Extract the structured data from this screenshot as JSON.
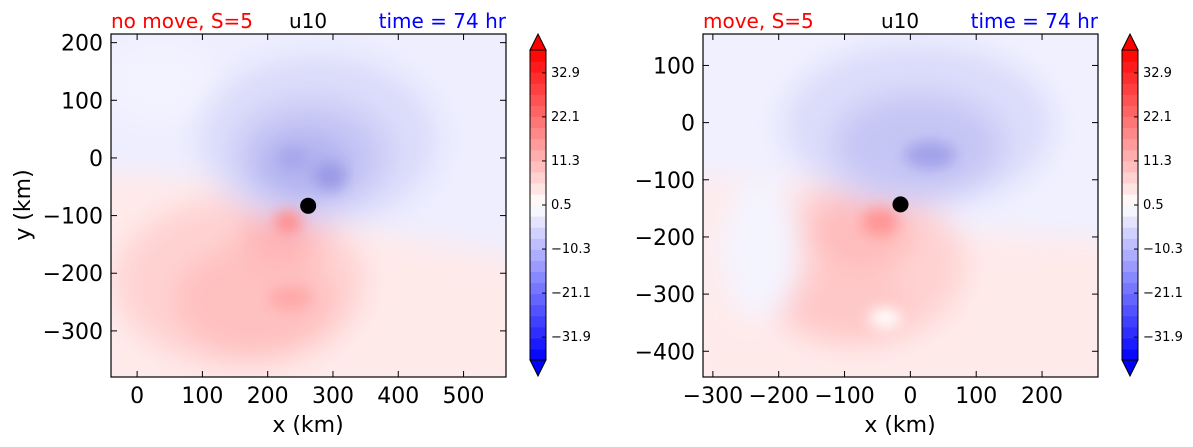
{
  "chart_data": [
    {
      "type": "heatmap",
      "title_left": "no move, S=5",
      "title_center": "u10",
      "title_right": "time = 74 hr",
      "title_left_color": "#ff0000",
      "title_center_color": "#000000",
      "title_right_color": "#0000ff",
      "xlabel": "x (km)",
      "ylabel": "y (km)",
      "xlim": [
        -40,
        565
      ],
      "ylim": [
        -380,
        215
      ],
      "xticks": [
        0,
        100,
        200,
        300,
        400,
        500
      ],
      "xtick_labels": [
        "0",
        "100",
        "200",
        "300",
        "400",
        "500"
      ],
      "yticks": [
        200,
        100,
        0,
        -100,
        -200,
        -300
      ],
      "ytick_labels": [
        "200",
        "100",
        "0",
        "−100",
        "−200",
        "−300"
      ],
      "storm_center": [
        262,
        -83
      ],
      "colorbar": {
        "min": -37.5,
        "max": 38.5,
        "ticks": [
          32.9,
          22.1,
          11.3,
          0.5,
          -10.3,
          -21.1,
          -31.9
        ],
        "tick_labels": [
          "32.9",
          "22.1",
          "11.3",
          "0.5",
          "−10.3",
          "−21.1",
          "−31.9"
        ],
        "extend": "both",
        "colormap": "bwr",
        "color_low": "#0000ff",
        "color_mid": "#ffffff",
        "color_high": "#ff0000"
      }
    },
    {
      "type": "heatmap",
      "title_left": "move, S=5",
      "title_center": "u10",
      "title_right": "time = 74 hr",
      "title_left_color": "#ff0000",
      "title_center_color": "#000000",
      "title_right_color": "#0000ff",
      "xlabel": "x (km)",
      "ylabel": "",
      "xlim": [
        -315,
        285
      ],
      "ylim": [
        -445,
        155
      ],
      "xticks": [
        -300,
        -200,
        -100,
        0,
        100,
        200
      ],
      "xtick_labels": [
        "−300",
        "−200",
        "−100",
        "0",
        "100",
        "200"
      ],
      "yticks": [
        100,
        0,
        -100,
        -200,
        -300,
        -400
      ],
      "ytick_labels": [
        "100",
        "0",
        "−100",
        "−200",
        "−300",
        "−400"
      ],
      "storm_center": [
        -15,
        -143
      ],
      "colorbar": {
        "min": -37.5,
        "max": 38.5,
        "ticks": [
          32.9,
          22.1,
          11.3,
          0.5,
          -10.3,
          -21.1,
          -31.9
        ],
        "tick_labels": [
          "32.9",
          "22.1",
          "11.3",
          "0.5",
          "−10.3",
          "−21.1",
          "−31.9"
        ],
        "extend": "both",
        "colormap": "bwr",
        "color_low": "#0000ff",
        "color_mid": "#ffffff",
        "color_high": "#ff0000"
      }
    }
  ]
}
